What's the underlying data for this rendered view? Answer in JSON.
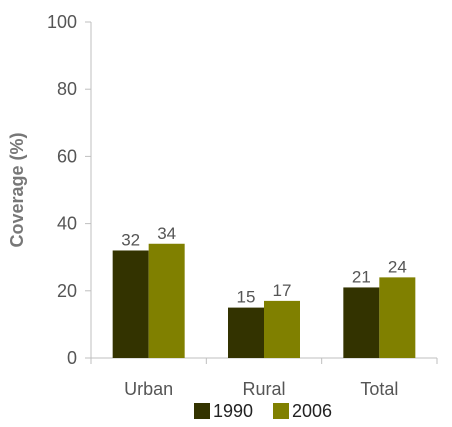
{
  "chart_data": {
    "type": "bar",
    "title": "",
    "xlabel": "",
    "ylabel": "Coverage (%)",
    "ylim": [
      0,
      100
    ],
    "yticks": [
      0,
      20,
      40,
      60,
      80,
      100
    ],
    "yticks_text": [
      "0",
      "20",
      "40",
      "60",
      "80",
      "100"
    ],
    "grid": false,
    "legend": "bottom",
    "categories": [
      "Urban",
      "Rural",
      "Total"
    ],
    "series": [
      {
        "name": "1990",
        "values": [
          32,
          15,
          21
        ],
        "labels": [
          "32",
          "15",
          "21"
        ],
        "color": "#333300"
      },
      {
        "name": "2006",
        "values": [
          34,
          17,
          24
        ],
        "labels": [
          "34",
          "17",
          "24"
        ],
        "color": "#808000"
      }
    ]
  }
}
